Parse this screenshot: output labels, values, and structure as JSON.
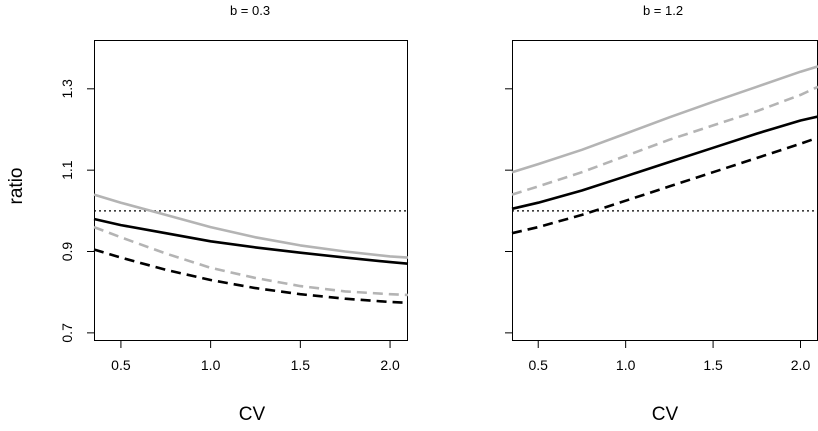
{
  "chart_data": [
    {
      "type": "line",
      "title": "b = 0.3",
      "xlabel": "CV",
      "ylabel": "ratio",
      "xlim": [
        0.35,
        2.1
      ],
      "ylim": [
        0.68,
        1.42
      ],
      "x_ticks": [
        "0.5",
        "1.0",
        "1.5",
        "2.0"
      ],
      "x_tick_values": [
        0.5,
        1.0,
        1.5,
        2.0
      ],
      "y_ticks": [
        "0.7",
        "0.9",
        "1.1",
        "1.3"
      ],
      "y_tick_values": [
        0.7,
        0.9,
        1.1,
        1.3
      ],
      "y_tick_labels_shown": true,
      "reference_line": {
        "y": 1.0,
        "style": "dotted",
        "color": "#000000"
      },
      "x": [
        0.35,
        0.5,
        0.75,
        1.0,
        1.25,
        1.5,
        1.75,
        2.0,
        2.1
      ],
      "series": [
        {
          "color": "#b4b4b4",
          "dash": "solid",
          "values": [
            1.04,
            1.02,
            0.99,
            0.96,
            0.935,
            0.915,
            0.9,
            0.888,
            0.885
          ]
        },
        {
          "color": "#000000",
          "dash": "solid",
          "values": [
            0.98,
            0.965,
            0.945,
            0.925,
            0.91,
            0.897,
            0.885,
            0.874,
            0.87
          ]
        },
        {
          "color": "#b4b4b4",
          "dash": "dashed",
          "values": [
            0.96,
            0.935,
            0.895,
            0.86,
            0.835,
            0.815,
            0.802,
            0.795,
            0.793
          ]
        },
        {
          "color": "#000000",
          "dash": "dashed",
          "values": [
            0.905,
            0.885,
            0.855,
            0.83,
            0.81,
            0.795,
            0.784,
            0.776,
            0.774
          ]
        }
      ]
    },
    {
      "type": "line",
      "title": "b = 1.2",
      "xlabel": "CV",
      "ylabel": "",
      "xlim": [
        0.35,
        2.1
      ],
      "ylim": [
        0.68,
        1.42
      ],
      "x_ticks": [
        "0.5",
        "1.0",
        "1.5",
        "2.0"
      ],
      "x_tick_values": [
        0.5,
        1.0,
        1.5,
        2.0
      ],
      "y_ticks": [
        "",
        "",
        "",
        ""
      ],
      "y_tick_values": [
        0.7,
        0.9,
        1.1,
        1.3
      ],
      "y_tick_labels_shown": false,
      "reference_line": {
        "y": 1.0,
        "style": "dotted",
        "color": "#000000"
      },
      "x": [
        0.35,
        0.5,
        0.75,
        1.0,
        1.25,
        1.5,
        1.75,
        2.0,
        2.1
      ],
      "series": [
        {
          "color": "#b4b4b4",
          "dash": "solid",
          "values": [
            1.095,
            1.115,
            1.15,
            1.19,
            1.23,
            1.268,
            1.305,
            1.342,
            1.355
          ]
        },
        {
          "color": "#b4b4b4",
          "dash": "dashed",
          "values": [
            1.04,
            1.06,
            1.095,
            1.135,
            1.175,
            1.21,
            1.245,
            1.285,
            1.305
          ]
        },
        {
          "color": "#000000",
          "dash": "solid",
          "values": [
            1.005,
            1.02,
            1.05,
            1.085,
            1.12,
            1.155,
            1.19,
            1.222,
            1.232
          ]
        },
        {
          "color": "#000000",
          "dash": "dashed",
          "values": [
            0.945,
            0.96,
            0.99,
            1.025,
            1.06,
            1.095,
            1.13,
            1.165,
            1.18
          ]
        }
      ]
    }
  ]
}
